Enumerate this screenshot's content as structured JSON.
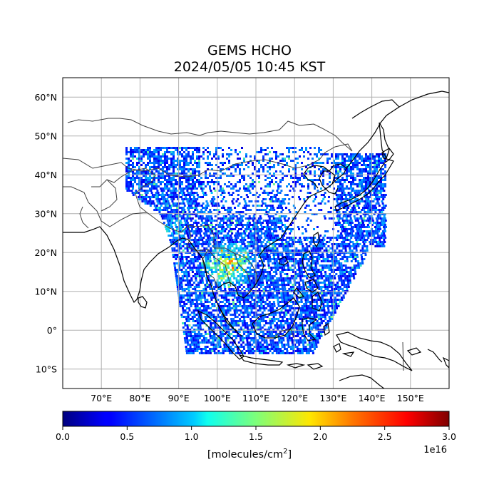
{
  "title": {
    "line1": "GEMS HCHO",
    "line2": "2024/05/05 10:45 KST"
  },
  "map": {
    "projection": "plate-carree",
    "lon_range": [
      60,
      160
    ],
    "lat_range": [
      -15,
      65
    ],
    "grid": true,
    "lon_ticks": [
      "70°E",
      "80°E",
      "90°E",
      "100°E",
      "110°E",
      "120°E",
      "130°E",
      "140°E",
      "150°E"
    ],
    "lat_ticks": [
      "10°S",
      "0°",
      "10°N",
      "20°N",
      "30°N",
      "40°N",
      "50°N",
      "60°N"
    ],
    "lon_tick_values": [
      70,
      80,
      90,
      100,
      110,
      120,
      130,
      140,
      150
    ],
    "lat_tick_values": [
      -10,
      0,
      10,
      20,
      30,
      40,
      50,
      60
    ]
  },
  "colorbar": {
    "colormap": "jet",
    "min": 0.0,
    "max": 3.0,
    "ticks": [
      "0.0",
      "0.5",
      "1.0",
      "1.5",
      "2.0",
      "2.5",
      "3.0"
    ],
    "tick_values": [
      0,
      0.5,
      1.0,
      1.5,
      2.0,
      2.5,
      3.0
    ],
    "offset": "1e16",
    "label_text": "[molecules/cm",
    "label_sup": "2",
    "label_close": "]"
  },
  "colors": {
    "coastline": "#000000",
    "borders": "#404040",
    "grid": "#b0b0b0"
  }
}
